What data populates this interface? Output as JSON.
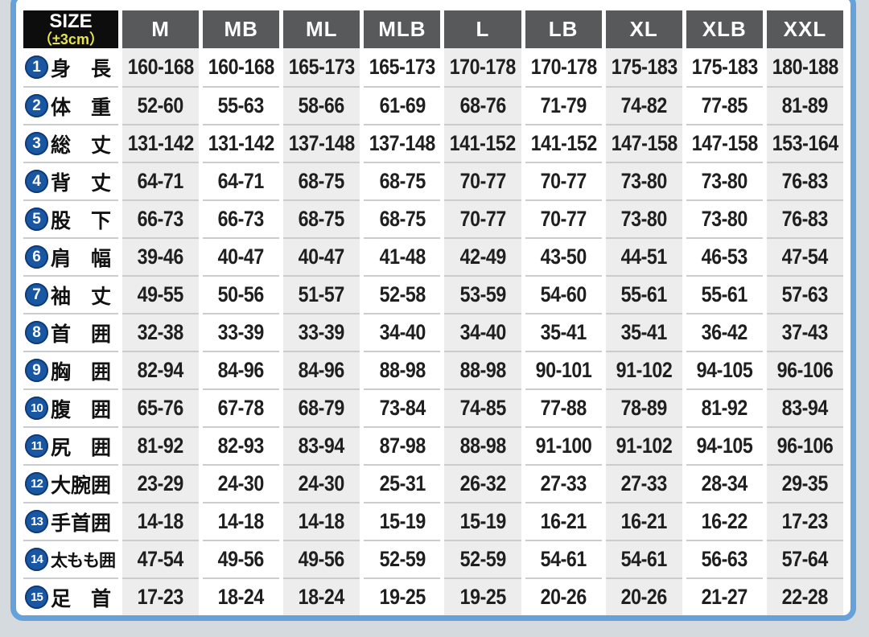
{
  "page": {
    "background": "#d4dade",
    "frame_color": "#67a1da",
    "panel_bg": "#ffffff"
  },
  "header": {
    "size_label": "SIZE",
    "tolerance_label": "（±3cm）",
    "size_cell_bg": "#0d0d0d",
    "tolerance_color": "#e8e44c",
    "column_bg": "#58595b",
    "stripe_color": "#ededed",
    "badge_color": "#1a57a3"
  },
  "chart_data": {
    "type": "table",
    "columns": [
      "M",
      "MB",
      "ML",
      "MLB",
      "L",
      "LB",
      "XL",
      "XLB",
      "XXL"
    ],
    "rows": [
      {
        "num": "1",
        "label": "身　長",
        "values": [
          "160-168",
          "160-168",
          "165-173",
          "165-173",
          "170-178",
          "170-178",
          "175-183",
          "175-183",
          "180-188"
        ]
      },
      {
        "num": "2",
        "label": "体　重",
        "values": [
          "52-60",
          "55-63",
          "58-66",
          "61-69",
          "68-76",
          "71-79",
          "74-82",
          "77-85",
          "81-89"
        ]
      },
      {
        "num": "3",
        "label": "総　丈",
        "values": [
          "131-142",
          "131-142",
          "137-148",
          "137-148",
          "141-152",
          "141-152",
          "147-158",
          "147-158",
          "153-164"
        ]
      },
      {
        "num": "4",
        "label": "背　丈",
        "values": [
          "64-71",
          "64-71",
          "68-75",
          "68-75",
          "70-77",
          "70-77",
          "73-80",
          "73-80",
          "76-83"
        ]
      },
      {
        "num": "5",
        "label": "股　下",
        "values": [
          "66-73",
          "66-73",
          "68-75",
          "68-75",
          "70-77",
          "70-77",
          "73-80",
          "73-80",
          "76-83"
        ]
      },
      {
        "num": "6",
        "label": "肩　幅",
        "values": [
          "39-46",
          "40-47",
          "40-47",
          "41-48",
          "42-49",
          "43-50",
          "44-51",
          "46-53",
          "47-54"
        ]
      },
      {
        "num": "7",
        "label": "袖　丈",
        "values": [
          "49-55",
          "50-56",
          "51-57",
          "52-58",
          "53-59",
          "54-60",
          "55-61",
          "55-61",
          "57-63"
        ]
      },
      {
        "num": "8",
        "label": "首　囲",
        "values": [
          "32-38",
          "33-39",
          "33-39",
          "34-40",
          "34-40",
          "35-41",
          "35-41",
          "36-42",
          "37-43"
        ]
      },
      {
        "num": "9",
        "label": "胸　囲",
        "values": [
          "82-94",
          "84-96",
          "84-96",
          "88-98",
          "88-98",
          "90-101",
          "91-102",
          "94-105",
          "96-106"
        ]
      },
      {
        "num": "10",
        "label": "腹　囲",
        "values": [
          "65-76",
          "67-78",
          "68-79",
          "73-84",
          "74-85",
          "77-88",
          "78-89",
          "81-92",
          "83-94"
        ]
      },
      {
        "num": "11",
        "label": "尻　囲",
        "values": [
          "81-92",
          "82-93",
          "83-94",
          "87-98",
          "88-98",
          "91-100",
          "91-102",
          "94-105",
          "96-106"
        ]
      },
      {
        "num": "12",
        "label": "大腕囲",
        "values": [
          "23-29",
          "24-30",
          "24-30",
          "25-31",
          "26-32",
          "27-33",
          "27-33",
          "28-34",
          "29-35"
        ]
      },
      {
        "num": "13",
        "label": "手首囲",
        "values": [
          "14-18",
          "14-18",
          "14-18",
          "15-19",
          "15-19",
          "16-21",
          "16-21",
          "16-22",
          "17-23"
        ]
      },
      {
        "num": "14",
        "label": "太もも囲",
        "values": [
          "47-54",
          "49-56",
          "49-56",
          "52-59",
          "52-59",
          "54-61",
          "54-61",
          "56-63",
          "57-64"
        ]
      },
      {
        "num": "15",
        "label": "足　首",
        "values": [
          "17-23",
          "18-24",
          "18-24",
          "19-25",
          "19-25",
          "20-26",
          "20-26",
          "21-27",
          "22-28"
        ]
      }
    ]
  }
}
